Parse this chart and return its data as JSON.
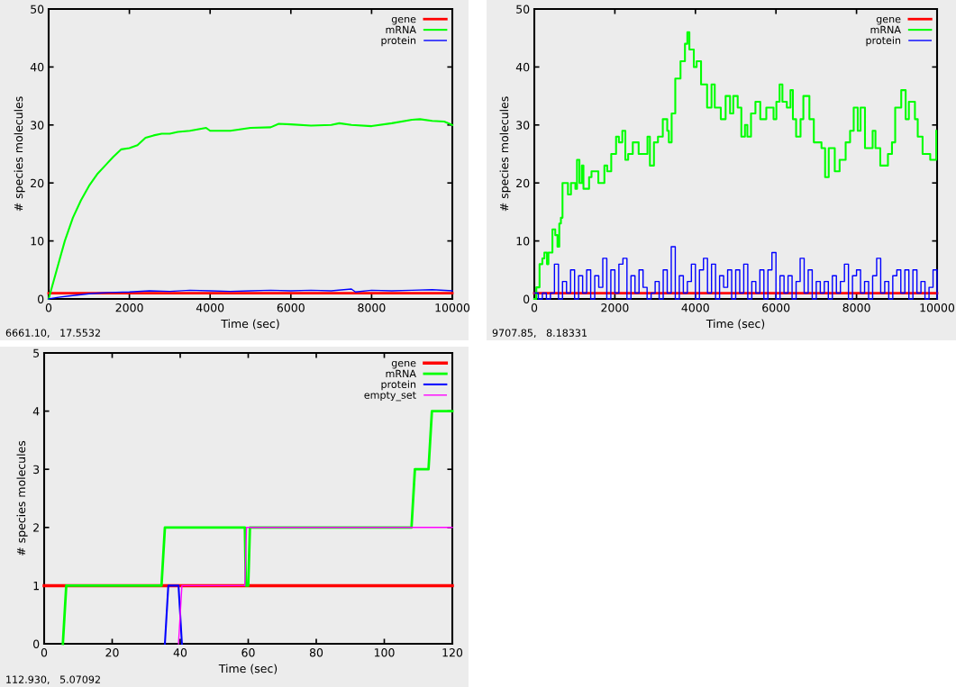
{
  "chart_data": [
    {
      "type": "line",
      "xlabel": "Time (sec)",
      "ylabel": "# species molecules",
      "xlim": [
        0,
        10000
      ],
      "ylim": [
        0,
        50
      ],
      "xticks": [
        0,
        2000,
        4000,
        6000,
        8000,
        10000
      ],
      "yticks": [
        0,
        10,
        20,
        30,
        40,
        50
      ],
      "grid": false,
      "legend": "top right",
      "annotations": [
        "6661.10,   17.5532"
      ],
      "series": [
        {
          "name": "gene",
          "color": "#ff0000",
          "x": [
            0,
            10000
          ],
          "values": [
            1,
            1
          ]
        },
        {
          "name": "mRNA",
          "color": "#00ff00",
          "x": [
            0,
            200,
            400,
            600,
            800,
            1000,
            1200,
            1400,
            1600,
            1800,
            2000,
            2200,
            2400,
            2600,
            2800,
            3000,
            3200,
            3500,
            3900,
            4000,
            4500,
            5000,
            5500,
            5700,
            6000,
            6500,
            7000,
            7200,
            7500,
            8000,
            8500,
            9000,
            9200,
            9500,
            9800,
            10000
          ],
          "values": [
            0,
            5,
            10,
            14,
            17,
            19.5,
            21.5,
            23,
            24.5,
            25.8,
            26,
            26.5,
            27.8,
            28.2,
            28.5,
            28.5,
            28.8,
            29,
            29.5,
            29,
            29,
            29.5,
            29.6,
            30.2,
            30.1,
            29.9,
            30,
            30.3,
            30,
            29.8,
            30.3,
            30.9,
            31,
            30.7,
            30.6,
            30
          ]
        },
        {
          "name": "protein",
          "color": "#0000ff",
          "x": [
            0,
            250,
            500,
            750,
            1000,
            1250,
            1500,
            2000,
            2500,
            3000,
            3500,
            4000,
            4500,
            5000,
            5500,
            6000,
            6500,
            7000,
            7500,
            7600,
            8000,
            8500,
            9000,
            9500,
            10000
          ],
          "values": [
            0,
            0.3,
            0.5,
            0.7,
            0.9,
            1.0,
            1.1,
            1.2,
            1.4,
            1.3,
            1.5,
            1.4,
            1.3,
            1.4,
            1.5,
            1.4,
            1.5,
            1.4,
            1.7,
            1.2,
            1.5,
            1.4,
            1.5,
            1.6,
            1.4
          ]
        }
      ]
    },
    {
      "type": "line",
      "xlabel": "Time (sec)",
      "ylabel": "# species molecules",
      "xlim": [
        0,
        10000
      ],
      "ylim": [
        0,
        50
      ],
      "xticks": [
        0,
        2000,
        4000,
        6000,
        8000,
        10000
      ],
      "yticks": [
        0,
        10,
        20,
        30,
        40,
        50
      ],
      "grid": false,
      "legend": "top right",
      "annotations": [
        "9707.85,   8.18331"
      ],
      "series": [
        {
          "name": "gene",
          "color": "#ff0000",
          "x": [
            0,
            10000
          ],
          "values": [
            1,
            1
          ]
        },
        {
          "name": "mRNA",
          "type": "step",
          "color": "#00ff00",
          "x": [
            0,
            50,
            130,
            200,
            250,
            315,
            350,
            450,
            520,
            575,
            620,
            660,
            700,
            835,
            910,
            1020,
            1060,
            1120,
            1180,
            1220,
            1360,
            1420,
            1590,
            1740,
            1810,
            1910,
            2030,
            2100,
            2185,
            2260,
            2330,
            2445,
            2590,
            2810,
            2870,
            2970,
            3070,
            3190,
            3300,
            3340,
            3410,
            3500,
            3630,
            3740,
            3800,
            3850,
            3960,
            4030,
            4140,
            4290,
            4400,
            4480,
            4630,
            4750,
            4860,
            4940,
            5050,
            5140,
            5230,
            5290,
            5380,
            5490,
            5610,
            5760,
            5940,
            6010,
            6090,
            6160,
            6270,
            6360,
            6420,
            6500,
            6610,
            6680,
            6830,
            6940,
            7130,
            7220,
            7310,
            7460,
            7580,
            7730,
            7840,
            7930,
            8030,
            8100,
            8210,
            8400,
            8470,
            8590,
            8780,
            8880,
            8960,
            9110,
            9220,
            9300,
            9450,
            9520,
            9640,
            9830,
            9980
          ],
          "values": [
            0,
            2,
            6,
            7,
            8,
            6,
            8,
            12,
            11,
            9,
            13,
            14,
            20,
            18,
            20,
            19,
            24,
            20,
            23,
            19,
            21,
            22,
            20,
            23,
            22,
            25,
            28,
            27,
            29,
            24,
            25,
            27,
            25,
            28,
            23,
            27,
            28,
            31,
            29,
            27,
            32,
            38,
            41,
            44,
            46,
            43,
            40,
            41,
            37,
            33,
            37,
            33,
            31,
            35,
            32,
            35,
            33,
            28,
            30,
            28,
            32,
            34,
            31,
            33,
            31,
            34,
            37,
            34,
            33,
            36,
            31,
            28,
            31,
            35,
            31,
            27,
            26,
            21,
            26,
            22,
            24,
            27,
            29,
            33,
            29,
            33,
            26,
            29,
            26,
            23,
            25,
            27,
            33,
            36,
            31,
            34,
            31,
            28,
            25,
            24,
            29
          ]
        },
        {
          "name": "protein",
          "type": "step",
          "color": "#0000ff",
          "x": [
            0,
            100,
            200,
            300,
            400,
            500,
            600,
            700,
            800,
            900,
            1000,
            1100,
            1200,
            1300,
            1400,
            1500,
            1600,
            1700,
            1800,
            1900,
            2000,
            2100,
            2200,
            2300,
            2400,
            2500,
            2600,
            2700,
            2800,
            2900,
            3000,
            3100,
            3200,
            3300,
            3400,
            3500,
            3600,
            3700,
            3800,
            3900,
            4000,
            4100,
            4200,
            4300,
            4400,
            4500,
            4600,
            4700,
            4800,
            4900,
            5000,
            5100,
            5200,
            5300,
            5400,
            5500,
            5600,
            5700,
            5800,
            5900,
            6000,
            6100,
            6200,
            6300,
            6400,
            6500,
            6600,
            6700,
            6800,
            6900,
            7000,
            7100,
            7200,
            7300,
            7400,
            7500,
            7600,
            7700,
            7800,
            7900,
            8000,
            8100,
            8200,
            8300,
            8400,
            8500,
            8600,
            8700,
            8800,
            8900,
            9000,
            9100,
            9200,
            9300,
            9400,
            9500,
            9600,
            9700,
            9800,
            9900,
            10000
          ],
          "values": [
            1,
            0,
            1,
            0,
            1,
            6,
            0,
            3,
            1,
            5,
            0,
            4,
            1,
            5,
            0,
            4,
            2,
            7,
            0,
            5,
            1,
            6,
            7,
            0,
            4,
            1,
            5,
            2,
            0,
            1,
            3,
            0,
            5,
            1,
            9,
            0,
            4,
            1,
            3,
            6,
            0,
            5,
            7,
            1,
            6,
            0,
            4,
            2,
            5,
            0,
            5,
            1,
            6,
            0,
            3,
            1,
            5,
            0,
            5,
            8,
            0,
            4,
            1,
            4,
            0,
            3,
            7,
            1,
            5,
            0,
            3,
            1,
            3,
            0,
            4,
            1,
            3,
            6,
            0,
            4,
            5,
            1,
            3,
            0,
            4,
            7,
            1,
            3,
            0,
            4,
            5,
            1,
            5,
            0,
            5,
            1,
            3,
            0,
            2,
            5,
            0
          ]
        }
      ]
    },
    {
      "type": "line",
      "xlabel": "Time (sec)",
      "ylabel": "# species molecules",
      "xlim": [
        0,
        120
      ],
      "ylim": [
        0,
        5
      ],
      "xticks": [
        0,
        20,
        40,
        60,
        80,
        100,
        120
      ],
      "yticks": [
        0,
        1,
        2,
        3,
        4,
        5
      ],
      "grid": false,
      "legend": "top right",
      "annotations": [
        "112.930,   5.07092"
      ],
      "series": [
        {
          "name": "gene",
          "color": "#ff0000",
          "x": [
            0,
            120
          ],
          "values": [
            1,
            1
          ]
        },
        {
          "name": "mRNA",
          "color": "#00ff00",
          "x": [
            5.5,
            6.5,
            34.5,
            35.5,
            59,
            59.3,
            60,
            60.5,
            108,
            109,
            113,
            114,
            120
          ],
          "values": [
            0,
            1,
            1,
            2,
            2,
            1,
            1,
            2,
            2,
            3,
            3,
            4,
            4
          ]
        },
        {
          "name": "protein",
          "color": "#0000ff",
          "x": [
            35.5,
            36.5,
            39.5,
            40.5
          ],
          "values": [
            0,
            1,
            1,
            0
          ]
        },
        {
          "name": "empty_set",
          "color": "#ff00ff",
          "x": [
            39.5,
            40.5,
            59,
            59.5,
            120
          ],
          "values": [
            0,
            1,
            1,
            2,
            2
          ]
        }
      ]
    }
  ]
}
